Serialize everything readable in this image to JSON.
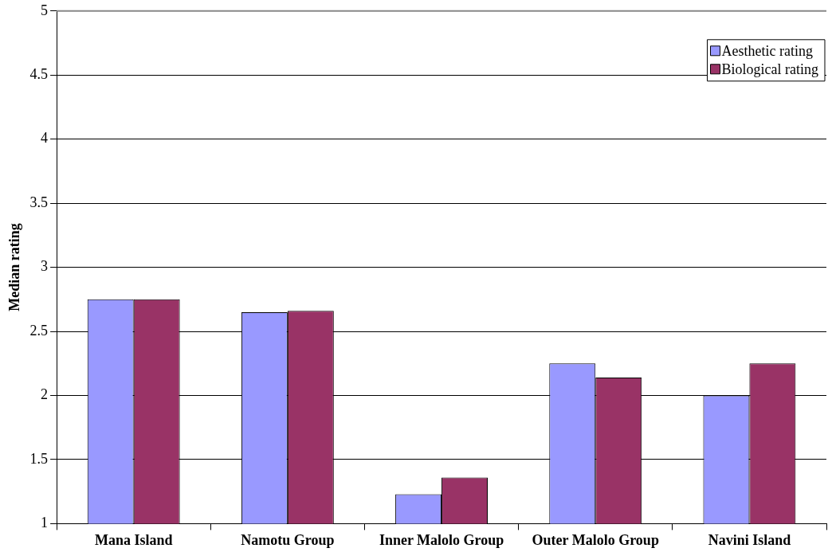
{
  "chart_data": {
    "type": "bar",
    "ylabel": "Median rating",
    "categories": [
      "Mana Island",
      "Namotu Group",
      "Inner Malolo Group",
      "Outer Malolo Group",
      "Navini Island"
    ],
    "series": [
      {
        "name": "Aesthetic rating",
        "color": "#9999ff",
        "values": [
          2.75,
          2.65,
          1.23,
          2.25,
          2.0
        ]
      },
      {
        "name": "Biological rating",
        "color": "#993366",
        "values": [
          2.75,
          2.66,
          1.36,
          2.14,
          2.25
        ]
      }
    ],
    "ylim": [
      1,
      5
    ],
    "yticks": [
      1,
      1.5,
      2,
      2.5,
      3,
      3.5,
      4,
      4.5,
      5
    ],
    "grid": "y",
    "legend": "top right"
  }
}
